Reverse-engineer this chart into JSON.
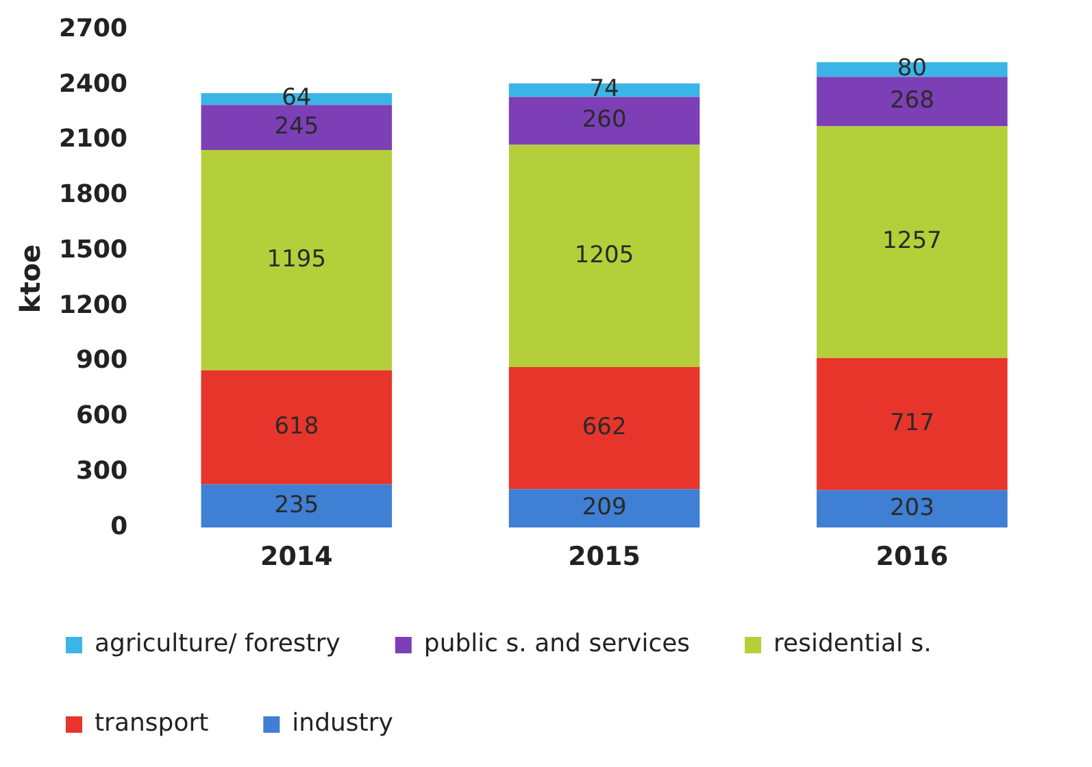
{
  "chart_data": {
    "type": "bar",
    "stacked": true,
    "ylabel": "ktoe",
    "categories": [
      "2014",
      "2015",
      "2016"
    ],
    "series": [
      {
        "name": "industry",
        "color": "#3f7fd4",
        "values": [
          235,
          209,
          203
        ]
      },
      {
        "name": "transport",
        "color": "#e8352b",
        "values": [
          618,
          662,
          717
        ]
      },
      {
        "name": "residential s.",
        "color": "#b5cf3a",
        "values": [
          1195,
          1205,
          1257
        ]
      },
      {
        "name": "public s. and services",
        "color": "#7d3fb5",
        "values": [
          245,
          260,
          268
        ]
      },
      {
        "name": "agriculture/ forestry",
        "color": "#3bb5e6",
        "values": [
          64,
          74,
          80
        ]
      }
    ],
    "ylim": [
      0,
      2700
    ],
    "yticks": [
      0,
      300,
      600,
      900,
      1200,
      1500,
      1800,
      2100,
      2400,
      2700
    ],
    "grid": false,
    "data_labels": true,
    "legend": "bottom"
  }
}
